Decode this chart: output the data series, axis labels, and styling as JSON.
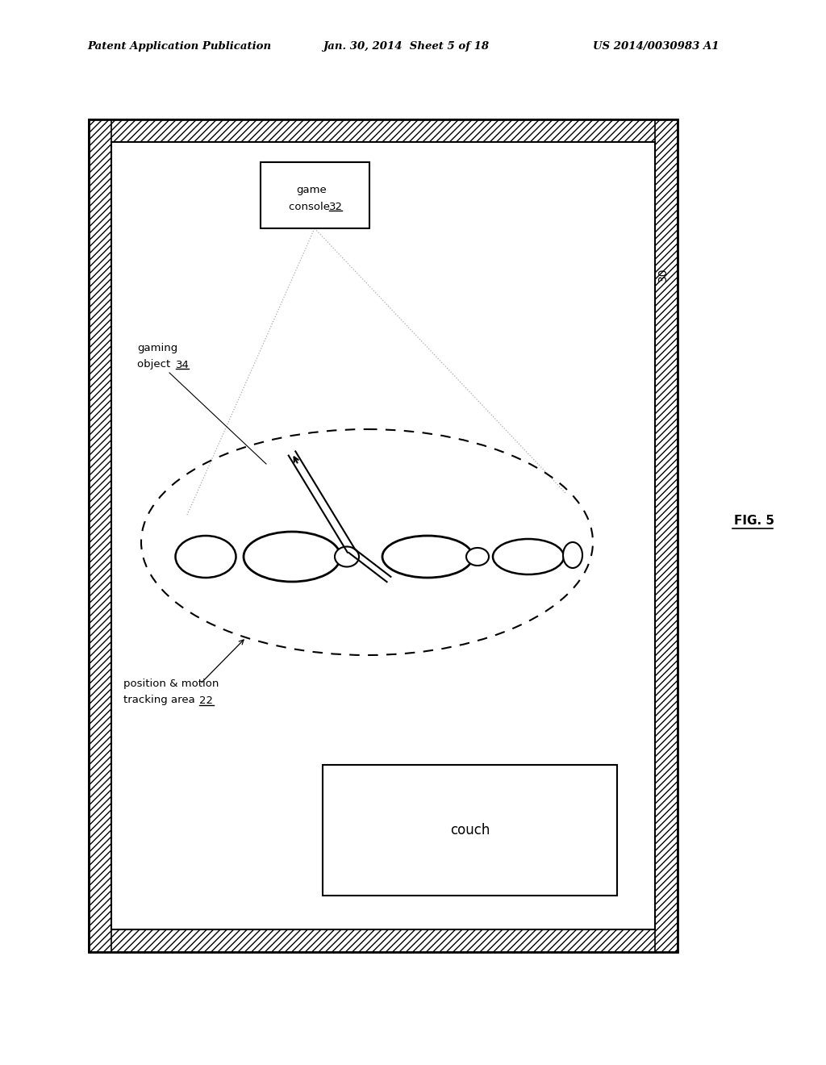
{
  "title_left": "Patent Application Publication",
  "title_center": "Jan. 30, 2014  Sheet 5 of 18",
  "title_right": "US 2014/0030983 A1",
  "fig_label": "FIG. 5",
  "room_label": "30",
  "game_console_label": "game\nconsole 32",
  "gaming_object_label": "gaming\nobject 34",
  "tracking_area_label": "position & motion\ntracking area 22",
  "couch_label": "couch",
  "bg_color": "#ffffff"
}
